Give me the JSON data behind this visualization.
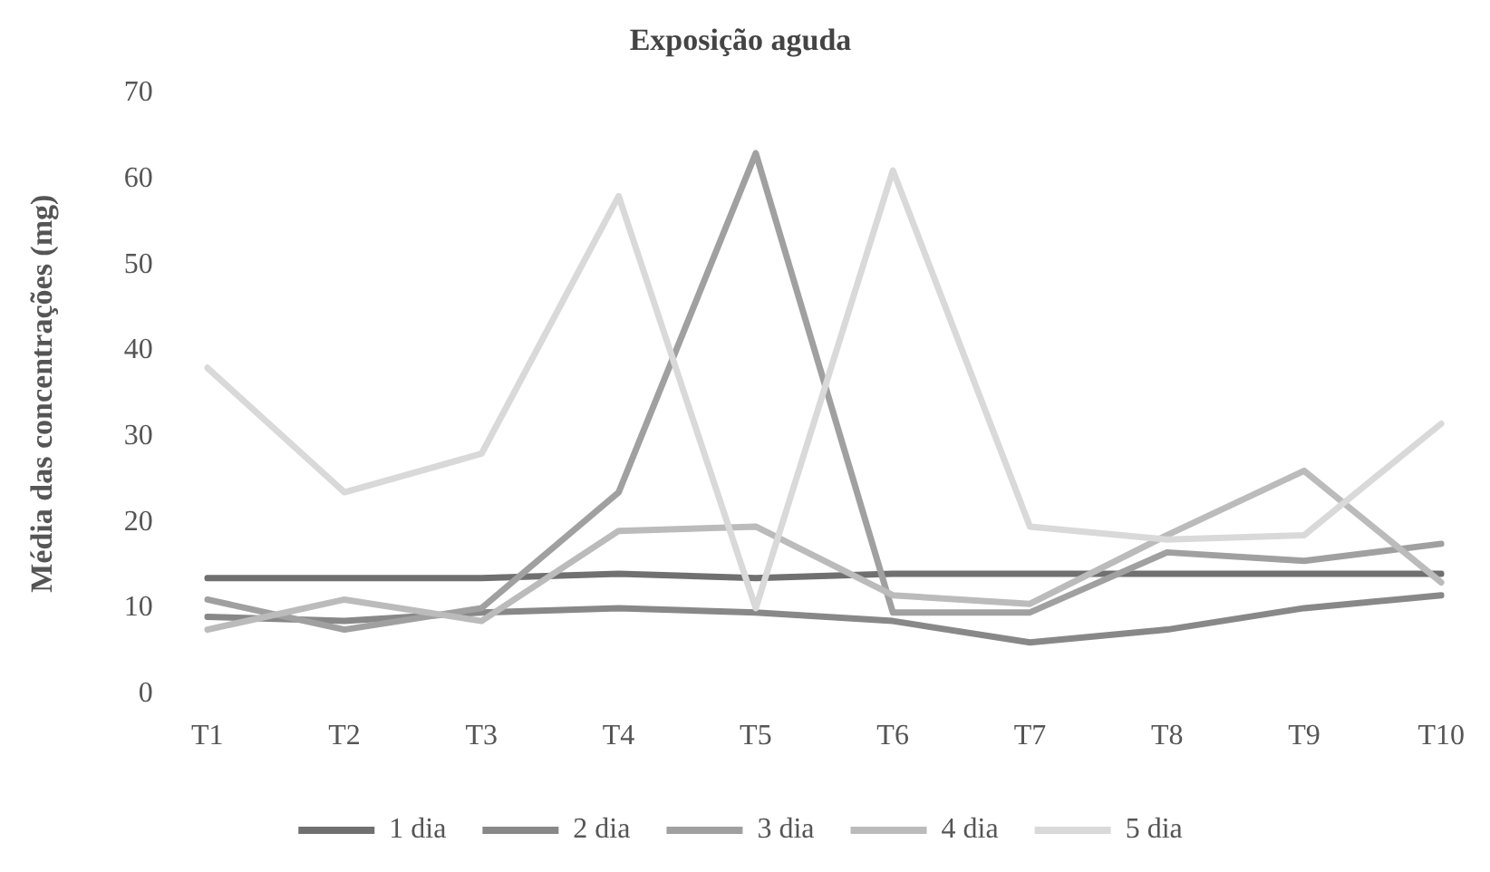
{
  "chart_data": {
    "type": "line",
    "title": "Exposição aguda",
    "ylabel": "Média das concentrações (mg)",
    "categories": [
      "T1",
      "T2",
      "T3",
      "T4",
      "T5",
      "T6",
      "T7",
      "T8",
      "T9",
      "T10"
    ],
    "series": [
      {
        "name": "1 dia",
        "color": "#707070",
        "values": [
          13.5,
          13.5,
          13.5,
          14,
          13.5,
          14,
          14,
          14,
          14,
          14
        ]
      },
      {
        "name": "2 dia",
        "color": "#888888",
        "values": [
          9,
          8.5,
          9.5,
          10,
          9.5,
          8.5,
          6,
          7.5,
          10,
          11.5
        ]
      },
      {
        "name": "3 dia",
        "color": "#a0a0a0",
        "values": [
          11,
          7.5,
          10,
          23.5,
          63,
          9.5,
          9.5,
          16.5,
          15.5,
          17.5
        ]
      },
      {
        "name": "4 dia",
        "color": "#bbbbbb",
        "values": [
          7.5,
          11,
          8.5,
          19,
          19.5,
          11.5,
          10.5,
          18.5,
          26,
          13
        ]
      },
      {
        "name": "5 dia",
        "color": "#d9d9d9",
        "values": [
          38,
          23.5,
          28,
          58,
          10,
          61,
          19.5,
          18,
          18.5,
          31.5
        ]
      }
    ],
    "ylim": [
      0,
      70
    ],
    "yticks": [
      0,
      10,
      20,
      30,
      40,
      50,
      60,
      70
    ],
    "grid": false,
    "legend": "bottom",
    "marker": "none",
    "line_style": "solid"
  }
}
